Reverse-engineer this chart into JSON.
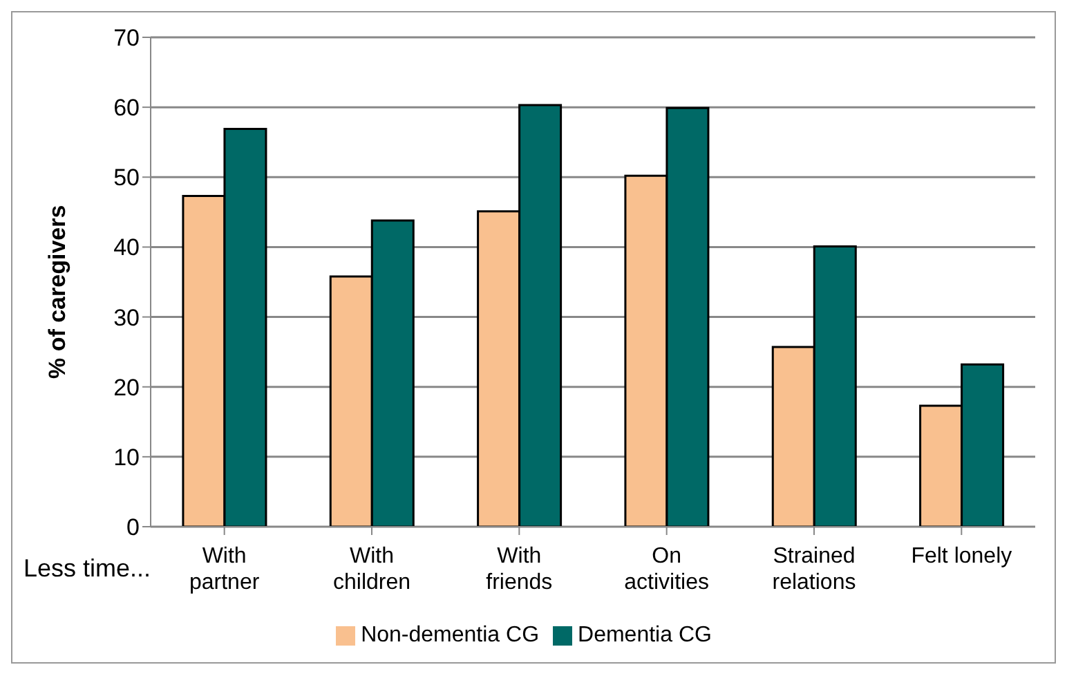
{
  "chart_data": {
    "type": "bar",
    "ylabel": "% of caregivers",
    "annotations": [
      "Less time..."
    ],
    "categories": [
      "With partner",
      "With children",
      "With friends",
      "On activities",
      "Strained relations",
      "Felt lonely"
    ],
    "series": [
      {
        "name": "Non-dementia CG",
        "color": "#f9c08f",
        "values": [
          47.3,
          35.8,
          45.1,
          50.2,
          25.7,
          17.3
        ]
      },
      {
        "name": "Dementia CG",
        "color": "#006966",
        "values": [
          56.9,
          43.8,
          60.3,
          59.9,
          40.1,
          23.2
        ]
      }
    ],
    "ylim": [
      0,
      70
    ],
    "yticks": [
      0,
      10,
      20,
      30,
      40,
      50,
      60,
      70
    ],
    "grid": "y",
    "legend": "bottom"
  }
}
